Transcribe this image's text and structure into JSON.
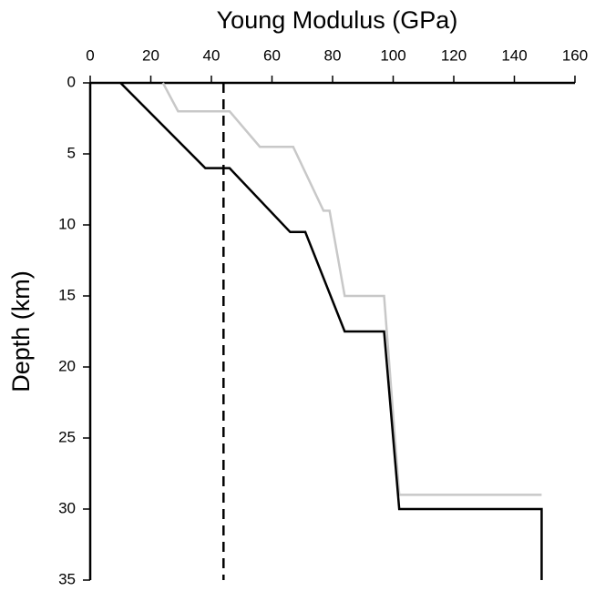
{
  "chart_data": {
    "type": "line",
    "xlabel": "Young Modulus (GPa)",
    "ylabel": "Depth (km)",
    "xlim": [
      0,
      160
    ],
    "xticks": [
      0,
      20,
      40,
      60,
      80,
      100,
      120,
      140,
      160
    ],
    "ylim": [
      0,
      35
    ],
    "yticks": [
      0,
      5,
      10,
      15,
      20,
      25,
      30,
      35
    ],
    "y_inverted": true,
    "x_axis_position": "top",
    "series": [
      {
        "color": "#c8c8c8",
        "dash": false,
        "x": [
          24,
          29,
          46,
          56,
          67,
          77,
          79,
          84,
          97,
          102,
          149
        ],
        "values": [
          0,
          2,
          2,
          4.5,
          4.5,
          9,
          9,
          15,
          15,
          29,
          29
        ]
      },
      {
        "color": "#000000",
        "dash": false,
        "x": [
          10,
          38,
          46,
          66,
          71,
          84,
          97,
          102,
          149,
          149
        ],
        "values": [
          0,
          6,
          6,
          10.5,
          10.5,
          17.5,
          17.5,
          30,
          30,
          35
        ]
      },
      {
        "color": "#000000",
        "dash": true,
        "x": [
          44,
          44
        ],
        "values": [
          0,
          35
        ]
      }
    ]
  }
}
